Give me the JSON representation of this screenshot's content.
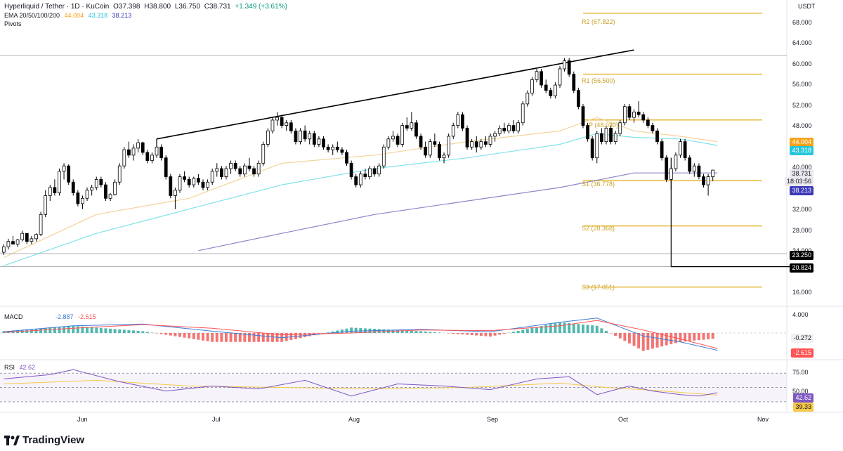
{
  "header": {
    "symbol": "Hyperliquid / Tether · 1D · KuCoin",
    "open": "O37.398",
    "high": "H38.800",
    "low": "L36.750",
    "close": "C38.731",
    "change": "+1.349 (+3.61%)",
    "ema_label": "EMA 20/50/100/200",
    "ema_values": [
      "44.004",
      "43.318",
      "38.213"
    ],
    "pivots_label": "Pivots"
  },
  "quote_currency": "USDT",
  "price_axis": [
    "68.000",
    "64.000",
    "60.000",
    "56.000",
    "52.000",
    "48.000",
    "40.000",
    "32.000",
    "28.000",
    "24.000",
    "16.000"
  ],
  "price_badges": {
    "ema20": {
      "value": "44.004",
      "color": "#f7a21b"
    },
    "ema50": {
      "value": "43.318",
      "color": "#26c6da"
    },
    "last_price": "38.731",
    "countdown": "18:03:56",
    "ema200": {
      "value": "38.213",
      "color": "#3c3ab8"
    },
    "level_a": "23.250",
    "level_b": "20.824"
  },
  "pivots": [
    {
      "label": "R2 (67.822)",
      "value": 67.822
    },
    {
      "label": "R1 (56.500)",
      "value": 56.5
    },
    {
      "label": "P (48.030)",
      "value": 48.03
    },
    {
      "label": "S1 (36.778)",
      "value": 36.778
    },
    {
      "label": "S2 (28.368)",
      "value": 28.368
    },
    {
      "label": "S3 (17.051)",
      "value": 17.051
    }
  ],
  "macd": {
    "label": "MACD",
    "values": [
      "-2.887",
      "-2.615"
    ],
    "axis": [
      "4.000"
    ],
    "badges": {
      "macd": "-0.272",
      "signal": "-2.615"
    },
    "colors": {
      "macd": "#3d7bd9",
      "signal": "#ff5252"
    }
  },
  "rsi": {
    "label": "RSI",
    "value": "42.62",
    "axis": [
      "75.00",
      "50.00"
    ],
    "badges": {
      "rsi": "42.62",
      "ma": "39.33"
    },
    "colors": {
      "rsi": "#7e57c2",
      "ma": "#f7c948"
    }
  },
  "time_axis": [
    "Jun",
    "Jul",
    "Aug",
    "Sep",
    "Oct",
    "Nov"
  ],
  "brand": "TradingView",
  "colors": {
    "up": "#ffffff",
    "down": "#000000",
    "ema20": "#f3d39a",
    "ema50": "#7fe3ea",
    "ema200": "#8b86c9",
    "pivot": "#e8b93a",
    "trendline": "#000000"
  },
  "chart_data": {
    "type": "candlestick",
    "y_range": [
      14,
      70
    ],
    "candles": [
      [
        23.5,
        25.0,
        23.0,
        24.5
      ],
      [
        24.5,
        26.0,
        24.0,
        25.5
      ],
      [
        25.5,
        26.5,
        25.0,
        25.0
      ],
      [
        25.0,
        26.0,
        24.5,
        25.8
      ],
      [
        25.8,
        27.5,
        25.5,
        27.0
      ],
      [
        27.0,
        27.0,
        25.0,
        25.5
      ],
      [
        25.5,
        26.5,
        25.0,
        26.0
      ],
      [
        26.0,
        27.0,
        25.5,
        26.8
      ],
      [
        26.8,
        31.0,
        26.5,
        30.5
      ],
      [
        30.5,
        35.0,
        30.0,
        34.0
      ],
      [
        34.0,
        36.0,
        33.0,
        35.5
      ],
      [
        35.5,
        37.0,
        34.0,
        34.5
      ],
      [
        34.5,
        39.0,
        34.0,
        38.5
      ],
      [
        38.5,
        40.0,
        37.0,
        39.5
      ],
      [
        39.5,
        39.8,
        36.0,
        36.5
      ],
      [
        36.5,
        37.0,
        34.0,
        34.5
      ],
      [
        34.5,
        35.0,
        32.0,
        32.5
      ],
      [
        32.5,
        34.0,
        31.5,
        33.5
      ],
      [
        33.5,
        35.5,
        33.0,
        35.0
      ],
      [
        35.0,
        36.0,
        34.0,
        35.5
      ],
      [
        35.5,
        37.5,
        35.0,
        37.0
      ],
      [
        37.0,
        37.5,
        35.5,
        36.0
      ],
      [
        36.0,
        36.5,
        33.0,
        33.5
      ],
      [
        33.5,
        34.5,
        33.0,
        34.2
      ],
      [
        34.2,
        37.0,
        34.0,
        36.5
      ],
      [
        36.5,
        40.0,
        36.0,
        39.5
      ],
      [
        39.5,
        43.0,
        39.0,
        42.5
      ],
      [
        42.5,
        44.0,
        41.0,
        41.5
      ],
      [
        41.5,
        43.5,
        40.5,
        42.8
      ],
      [
        42.8,
        44.5,
        42.0,
        43.8
      ],
      [
        43.8,
        44.0,
        41.5,
        42.0
      ],
      [
        42.0,
        42.5,
        40.0,
        40.5
      ],
      [
        40.5,
        42.0,
        40.0,
        41.5
      ],
      [
        41.5,
        43.5,
        41.0,
        43.0
      ],
      [
        43.0,
        43.5,
        40.5,
        41.0
      ],
      [
        41.0,
        41.5,
        37.0,
        37.5
      ],
      [
        37.5,
        38.0,
        33.5,
        34.0
      ],
      [
        34.0,
        35.5,
        31.5,
        35.0
      ],
      [
        35.0,
        38.0,
        34.5,
        37.5
      ],
      [
        37.5,
        38.5,
        36.5,
        37.0
      ],
      [
        37.0,
        37.5,
        35.5,
        36.0
      ],
      [
        36.0,
        37.5,
        35.5,
        37.2
      ],
      [
        37.2,
        38.0,
        36.0,
        36.5
      ],
      [
        36.5,
        37.0,
        35.0,
        35.5
      ],
      [
        35.5,
        37.0,
        35.0,
        36.5
      ],
      [
        36.5,
        39.0,
        36.0,
        38.5
      ],
      [
        38.5,
        40.0,
        37.5,
        39.0
      ],
      [
        39.0,
        39.5,
        37.0,
        37.5
      ],
      [
        37.5,
        39.5,
        37.0,
        39.0
      ],
      [
        39.0,
        40.5,
        38.0,
        40.0
      ],
      [
        40.0,
        40.5,
        38.5,
        39.0
      ],
      [
        39.0,
        39.5,
        37.5,
        38.0
      ],
      [
        38.0,
        40.0,
        37.5,
        39.5
      ],
      [
        39.5,
        41.0,
        38.5,
        39.0
      ],
      [
        39.0,
        39.5,
        37.5,
        38.0
      ],
      [
        38.0,
        40.5,
        37.5,
        40.0
      ],
      [
        40.0,
        44.0,
        39.5,
        43.5
      ],
      [
        43.5,
        46.5,
        43.0,
        46.0
      ],
      [
        46.0,
        48.5,
        45.5,
        48.0
      ],
      [
        48.0,
        49.5,
        47.0,
        48.5
      ],
      [
        48.5,
        49.0,
        46.5,
        47.0
      ],
      [
        47.0,
        48.0,
        46.0,
        47.5
      ],
      [
        47.5,
        48.0,
        45.5,
        46.0
      ],
      [
        46.0,
        46.5,
        43.5,
        44.0
      ],
      [
        44.0,
        46.5,
        43.5,
        46.0
      ],
      [
        46.0,
        47.0,
        44.0,
        44.5
      ],
      [
        44.5,
        46.0,
        43.5,
        45.5
      ],
      [
        45.5,
        46.0,
        43.0,
        43.5
      ],
      [
        43.5,
        45.0,
        43.0,
        44.5
      ],
      [
        44.5,
        45.0,
        42.5,
        43.0
      ],
      [
        43.0,
        43.5,
        42.0,
        42.5
      ],
      [
        42.5,
        43.5,
        41.5,
        43.0
      ],
      [
        43.0,
        44.0,
        42.0,
        42.5
      ],
      [
        42.5,
        43.0,
        41.5,
        42.0
      ],
      [
        42.0,
        42.5,
        39.5,
        40.0
      ],
      [
        40.0,
        40.5,
        37.0,
        37.5
      ],
      [
        37.5,
        38.0,
        35.5,
        36.0
      ],
      [
        36.0,
        38.5,
        35.5,
        38.0
      ],
      [
        38.0,
        39.0,
        37.0,
        37.5
      ],
      [
        37.5,
        39.5,
        37.0,
        39.0
      ],
      [
        39.0,
        39.5,
        37.5,
        38.0
      ],
      [
        38.0,
        40.0,
        37.5,
        39.5
      ],
      [
        39.5,
        43.5,
        39.0,
        43.0
      ],
      [
        43.0,
        45.0,
        42.5,
        44.5
      ],
      [
        44.5,
        46.0,
        44.0,
        45.0
      ],
      [
        45.0,
        45.5,
        43.0,
        43.5
      ],
      [
        43.5,
        47.5,
        43.0,
        47.0
      ],
      [
        47.0,
        48.5,
        46.0,
        46.5
      ],
      [
        46.5,
        49.5,
        46.0,
        47.5
      ],
      [
        47.5,
        48.0,
        44.5,
        45.0
      ],
      [
        45.0,
        45.5,
        42.5,
        43.0
      ],
      [
        43.0,
        44.0,
        41.0,
        41.5
      ],
      [
        41.5,
        44.5,
        41.0,
        44.0
      ],
      [
        44.0,
        45.5,
        43.0,
        43.5
      ],
      [
        43.5,
        44.0,
        40.5,
        41.0
      ],
      [
        41.0,
        42.0,
        40.0,
        41.5
      ],
      [
        41.5,
        45.5,
        41.0,
        45.0
      ],
      [
        45.0,
        47.5,
        44.5,
        47.0
      ],
      [
        47.0,
        49.5,
        46.5,
        49.0
      ],
      [
        49.0,
        49.5,
        46.0,
        46.5
      ],
      [
        46.5,
        47.0,
        42.5,
        43.0
      ],
      [
        43.0,
        44.5,
        42.5,
        44.0
      ],
      [
        44.0,
        45.0,
        42.0,
        43.0
      ],
      [
        43.0,
        44.5,
        42.5,
        44.0
      ],
      [
        44.0,
        45.0,
        43.0,
        43.5
      ],
      [
        43.5,
        45.5,
        43.0,
        45.0
      ],
      [
        45.0,
        46.0,
        44.0,
        45.5
      ],
      [
        45.5,
        47.0,
        45.0,
        46.5
      ],
      [
        46.5,
        47.5,
        45.5,
        46.0
      ],
      [
        46.0,
        47.5,
        45.5,
        47.0
      ],
      [
        47.0,
        48.0,
        45.5,
        46.0
      ],
      [
        46.0,
        48.0,
        45.5,
        47.5
      ],
      [
        47.5,
        51.5,
        47.0,
        51.0
      ],
      [
        51.0,
        53.5,
        50.5,
        53.0
      ],
      [
        53.0,
        56.0,
        52.5,
        55.5
      ],
      [
        55.5,
        57.5,
        55.0,
        57.0
      ],
      [
        57.0,
        57.5,
        54.0,
        54.5
      ],
      [
        54.5,
        55.5,
        53.0,
        53.5
      ],
      [
        53.5,
        54.0,
        52.0,
        52.5
      ],
      [
        52.5,
        55.0,
        52.0,
        54.5
      ],
      [
        54.5,
        58.0,
        54.0,
        57.5
      ],
      [
        57.5,
        59.5,
        57.0,
        59.0
      ],
      [
        59.0,
        59.5,
        56.0,
        56.5
      ],
      [
        56.5,
        57.0,
        53.0,
        53.5
      ],
      [
        53.5,
        54.0,
        50.0,
        50.5
      ],
      [
        50.5,
        51.0,
        46.5,
        47.0
      ],
      [
        47.0,
        47.5,
        44.0,
        44.5
      ],
      [
        44.5,
        45.0,
        40.5,
        41.0
      ],
      [
        41.0,
        46.0,
        40.0,
        45.5
      ],
      [
        45.5,
        46.5,
        43.5,
        44.0
      ],
      [
        44.0,
        47.0,
        43.5,
        46.5
      ],
      [
        46.5,
        47.0,
        43.5,
        44.0
      ],
      [
        44.0,
        46.0,
        43.5,
        45.5
      ],
      [
        45.5,
        48.0,
        45.0,
        47.5
      ],
      [
        47.5,
        51.0,
        47.0,
        50.5
      ],
      [
        50.5,
        51.0,
        48.0,
        48.5
      ],
      [
        48.5,
        50.0,
        47.5,
        49.5
      ],
      [
        49.5,
        51.5,
        48.5,
        49.0
      ],
      [
        49.0,
        49.5,
        47.5,
        48.0
      ],
      [
        48.0,
        48.5,
        46.5,
        47.0
      ],
      [
        47.0,
        47.5,
        45.5,
        46.0
      ],
      [
        46.0,
        46.5,
        43.5,
        44.0
      ],
      [
        44.0,
        44.5,
        40.5,
        41.0
      ],
      [
        41.0,
        41.5,
        36.5,
        37.0
      ],
      [
        37.0,
        39.5,
        35.0,
        39.0
      ],
      [
        39.0,
        42.0,
        38.5,
        41.5
      ],
      [
        41.5,
        44.5,
        41.0,
        44.0
      ],
      [
        44.0,
        44.5,
        40.5,
        41.0
      ],
      [
        41.0,
        41.5,
        38.0,
        38.5
      ],
      [
        38.5,
        40.0,
        37.5,
        39.5
      ],
      [
        39.5,
        40.0,
        37.0,
        37.5
      ],
      [
        37.5,
        38.0,
        35.5,
        36.0
      ],
      [
        36.0,
        38.0,
        34.0,
        37.5
      ],
      [
        37.5,
        38.8,
        36.7,
        38.731
      ]
    ],
    "ema20": [
      [
        0,
        22.5
      ],
      [
        20,
        30.5
      ],
      [
        40,
        33.5
      ],
      [
        60,
        40
      ],
      [
        80,
        41.5
      ],
      [
        100,
        44
      ],
      [
        120,
        46
      ],
      [
        128,
        48.5
      ],
      [
        136,
        46
      ],
      [
        146,
        45
      ],
      [
        154,
        44
      ]
    ],
    "ema50": [
      [
        0,
        21
      ],
      [
        20,
        27
      ],
      [
        40,
        31.5
      ],
      [
        60,
        36
      ],
      [
        80,
        39
      ],
      [
        100,
        41
      ],
      [
        120,
        43.5
      ],
      [
        128,
        45.5
      ],
      [
        136,
        44.8
      ],
      [
        146,
        44.5
      ],
      [
        154,
        43.3
      ]
    ],
    "ema200": [
      [
        42,
        23.8
      ],
      [
        60,
        27
      ],
      [
        80,
        30.5
      ],
      [
        100,
        33
      ],
      [
        120,
        35.5
      ],
      [
        136,
        38.2
      ],
      [
        154,
        38.2
      ]
    ],
    "trendline": [
      [
        33,
        44.5
      ],
      [
        136,
        61
      ]
    ],
    "horizontal_levels": [
      60,
      23.25,
      20.824
    ],
    "macd_line": [
      [
        0,
        0.2
      ],
      [
        15,
        1.2
      ],
      [
        30,
        1.5
      ],
      [
        45,
        0.3
      ],
      [
        60,
        -0.8
      ],
      [
        75,
        0.3
      ],
      [
        90,
        0.6
      ],
      [
        105,
        0.2
      ],
      [
        120,
        1.8
      ],
      [
        128,
        2.5
      ],
      [
        138,
        -0.5
      ],
      [
        146,
        -1.5
      ],
      [
        154,
        -2.9
      ]
    ],
    "signal_line": [
      [
        0,
        0.1
      ],
      [
        15,
        0.8
      ],
      [
        30,
        1.4
      ],
      [
        45,
        0.8
      ],
      [
        60,
        -0.3
      ],
      [
        75,
        0.0
      ],
      [
        90,
        0.5
      ],
      [
        105,
        0.4
      ],
      [
        120,
        1.2
      ],
      [
        128,
        2.1
      ],
      [
        138,
        0.5
      ],
      [
        146,
        -1.0
      ],
      [
        154,
        -2.6
      ]
    ],
    "rsi_line": [
      [
        0,
        62
      ],
      [
        10,
        68
      ],
      [
        15,
        75
      ],
      [
        25,
        58
      ],
      [
        35,
        45
      ],
      [
        45,
        52
      ],
      [
        55,
        48
      ],
      [
        65,
        60
      ],
      [
        75,
        38
      ],
      [
        85,
        55
      ],
      [
        95,
        52
      ],
      [
        105,
        47
      ],
      [
        115,
        62
      ],
      [
        122,
        65
      ],
      [
        128,
        40
      ],
      [
        135,
        52
      ],
      [
        140,
        45
      ],
      [
        146,
        40
      ],
      [
        150,
        38
      ],
      [
        154,
        42.6
      ]
    ],
    "rsi_ma": [
      [
        0,
        55
      ],
      [
        20,
        60
      ],
      [
        40,
        52
      ],
      [
        60,
        50
      ],
      [
        80,
        48
      ],
      [
        100,
        50
      ],
      [
        120,
        56
      ],
      [
        130,
        50
      ],
      [
        140,
        46
      ],
      [
        154,
        39.3
      ]
    ]
  }
}
